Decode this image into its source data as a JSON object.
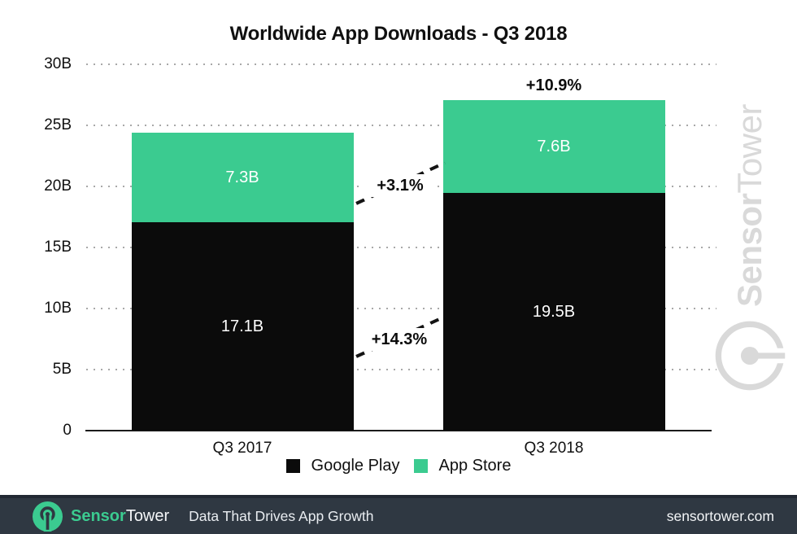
{
  "chart_data": {
    "type": "bar",
    "stacked": true,
    "title": "Worldwide App Downloads - Q3 2018",
    "categories": [
      "Q3 2017",
      "Q3 2018"
    ],
    "series": [
      {
        "name": "Google Play",
        "color": "#0b0b0b",
        "values": [
          17.1,
          19.5
        ],
        "value_labels": [
          "17.1B",
          "19.5B"
        ],
        "label_color": "#ffffff"
      },
      {
        "name": "App Store",
        "color": "#3bcb90",
        "values": [
          7.3,
          7.6
        ],
        "value_labels": [
          "7.3B",
          "7.6B"
        ],
        "label_color": "#ffffff"
      }
    ],
    "totals": [
      24.4,
      27.1
    ],
    "ylim": [
      0,
      30
    ],
    "yticks": [
      {
        "value": 30,
        "label": "30B"
      },
      {
        "value": 25,
        "label": "25B"
      },
      {
        "value": 20,
        "label": "20B"
      },
      {
        "value": 15,
        "label": "15B"
      },
      {
        "value": 10,
        "label": "10B"
      },
      {
        "value": 5,
        "label": "5B"
      },
      {
        "value": 0,
        "label": "0"
      }
    ],
    "grid": "dotted-horizontal",
    "legend_position": "bottom-center",
    "annotations": {
      "total_growth": "+10.9%",
      "app_store_growth": "+3.1%",
      "google_play_growth": "+14.3%"
    }
  },
  "watermark": {
    "brand_bold": "Sensor",
    "brand_regular": "Tower"
  },
  "footer": {
    "brand_bold": "Sensor",
    "brand_regular": "Tower",
    "tagline": "Data That Drives App Growth",
    "site": "sensortower.com"
  },
  "colors": {
    "accent_green": "#3bcb90",
    "bar_black": "#0b0b0b",
    "footer_bg": "#2f3842",
    "watermark_gray": "#d9d9d9",
    "grid_dot": "#a8a8a8",
    "axis": "#1b1b1b"
  }
}
